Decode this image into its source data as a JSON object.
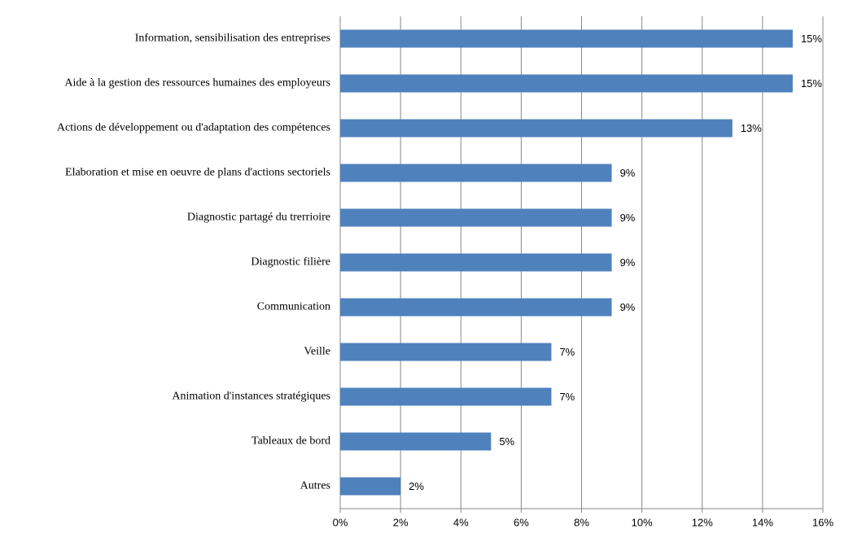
{
  "chart_data": {
    "type": "bar",
    "orientation": "horizontal",
    "categories": [
      "Information, sensibilisation des entreprises",
      "Aide à la gestion des ressources humaines des employeurs",
      "Actions de développement ou d'adaptation des compétences",
      "Elaboration et mise en oeuvre de plans d'actions sectoriels",
      "Diagnostic partagé du trerrioire",
      "Diagnostic filière",
      "Communication",
      "Veille",
      "Animation d'instances stratégiques",
      "Tableaux de bord",
      "Autres"
    ],
    "values": [
      15,
      15,
      13,
      9,
      9,
      9,
      9,
      7,
      7,
      5,
      2
    ],
    "value_labels": [
      "15%",
      "15%",
      "13%",
      "9%",
      "9%",
      "9%",
      "9%",
      "7%",
      "7%",
      "5%",
      "2%"
    ],
    "color": "#4f81bd",
    "xlim": [
      0,
      16
    ],
    "xticks": [
      {
        "value": 0,
        "label": "0%"
      },
      {
        "value": 2,
        "label": "2%"
      },
      {
        "value": 4,
        "label": "4%"
      },
      {
        "value": 6,
        "label": "6%"
      },
      {
        "value": 8,
        "label": "8%"
      },
      {
        "value": 10,
        "label": "10%"
      },
      {
        "value": 12,
        "label": "12%"
      },
      {
        "value": 14,
        "label": "14%"
      },
      {
        "value": 16,
        "label": "16%"
      }
    ],
    "grid": true
  }
}
